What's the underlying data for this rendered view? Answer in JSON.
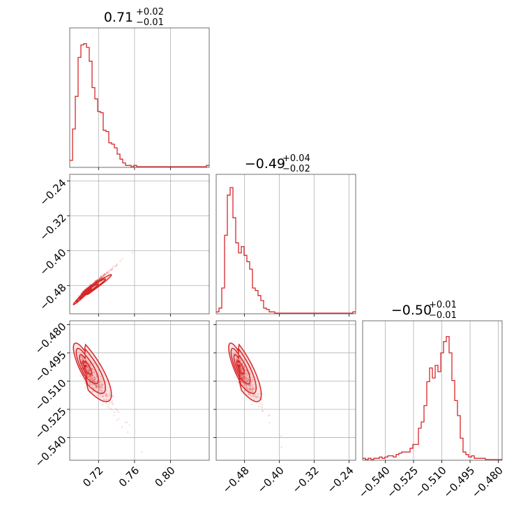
{
  "chart_data": {
    "type": "corner",
    "color": "#d62728",
    "axes": {
      "p0": {
        "range": [
          0.688,
          0.843
        ],
        "ticks": [
          "0.72",
          "0.76",
          "0.80"
        ],
        "tickvals": [
          0.72,
          0.76,
          0.8
        ]
      },
      "p1": {
        "range": [
          -0.545,
          -0.225
        ],
        "ticks": [
          "−0.48",
          "−0.40",
          "−0.32",
          "−0.24"
        ],
        "tickvals": [
          -0.48,
          -0.4,
          -0.32,
          -0.24
        ]
      },
      "p2": {
        "range": [
          -0.552,
          -0.478
        ],
        "ticks": [
          "−0.540",
          "−0.525",
          "−0.510",
          "−0.495",
          "−0.480"
        ],
        "tickvals": [
          -0.54,
          -0.525,
          -0.51,
          -0.495,
          -0.48
        ]
      }
    },
    "titles": [
      {
        "median": "0.71",
        "plus": "+0.02",
        "minus": "−0.01"
      },
      {
        "median": "−0.49",
        "plus": "+0.04",
        "minus": "−0.02"
      },
      {
        "median": "−0.50",
        "plus": "+0.01",
        "minus": "−0.01"
      }
    ],
    "hist_p0": {
      "x0": 0.688,
      "bin": 0.0031,
      "counts": [
        0.05,
        0.3,
        0.56,
        0.87,
        0.97,
        0.98,
        0.95,
        0.84,
        0.63,
        0.54,
        0.44,
        0.43,
        0.29,
        0.28,
        0.19,
        0.18,
        0.15,
        0.1,
        0.06,
        0.03,
        0.01,
        0.01,
        0,
        0.01,
        0,
        0,
        0,
        0,
        0,
        0,
        0,
        0,
        0,
        0,
        0,
        0,
        0,
        0,
        0,
        0,
        0,
        0,
        0,
        0,
        0,
        0,
        0,
        0,
        0,
        0.01
      ]
    },
    "hist_p1": {
      "x0": -0.545,
      "bin": 0.0064,
      "counts": [
        0.01,
        0.04,
        0.2,
        0.62,
        0.94,
        1.0,
        0.76,
        0.56,
        0.48,
        0.53,
        0.46,
        0.41,
        0.35,
        0.2,
        0.18,
        0.14,
        0.1,
        0.04,
        0.03,
        0.01,
        0.01,
        0,
        0,
        0,
        0,
        0,
        0,
        0,
        0,
        0,
        0,
        0,
        0,
        0,
        0,
        0,
        0,
        0,
        0,
        0,
        0,
        0,
        0,
        0,
        0,
        0,
        0,
        0,
        0,
        0.01
      ]
    },
    "hist_p2": {
      "x0": -0.552,
      "bin": 0.00148,
      "counts": [
        0.01,
        0,
        0.01,
        0,
        0.01,
        0.01,
        0.02,
        0.01,
        0.02,
        0.03,
        0.03,
        0.02,
        0.04,
        0.05,
        0.06,
        0.06,
        0.06,
        0.09,
        0.12,
        0.12,
        0.25,
        0.3,
        0.43,
        0.62,
        0.73,
        0.65,
        0.75,
        0.7,
        0.85,
        0.94,
        0.98,
        0.85,
        0.63,
        0.47,
        0.35,
        0.17,
        0.06,
        0.04,
        0.02,
        0.03,
        0.01,
        0.01,
        0.01,
        0.01,
        0.0,
        0.0,
        0.0,
        0.0,
        0.0,
        0.0
      ]
    },
    "pairs": [
      {
        "x": "p0",
        "y": "p1",
        "center": [
          0.703,
          -0.497
        ],
        "sx": 0.0065,
        "sy": 0.0115,
        "corr": 0.985
      },
      {
        "x": "p0",
        "y": "p2",
        "center": [
          0.703,
          -0.502
        ],
        "sx": 0.0065,
        "sy": 0.0052,
        "corr": -0.8
      },
      {
        "x": "p1",
        "y": "p2",
        "center": [
          -0.497,
          -0.502
        ],
        "sx": 0.0115,
        "sy": 0.0052,
        "corr": -0.8
      }
    ]
  }
}
